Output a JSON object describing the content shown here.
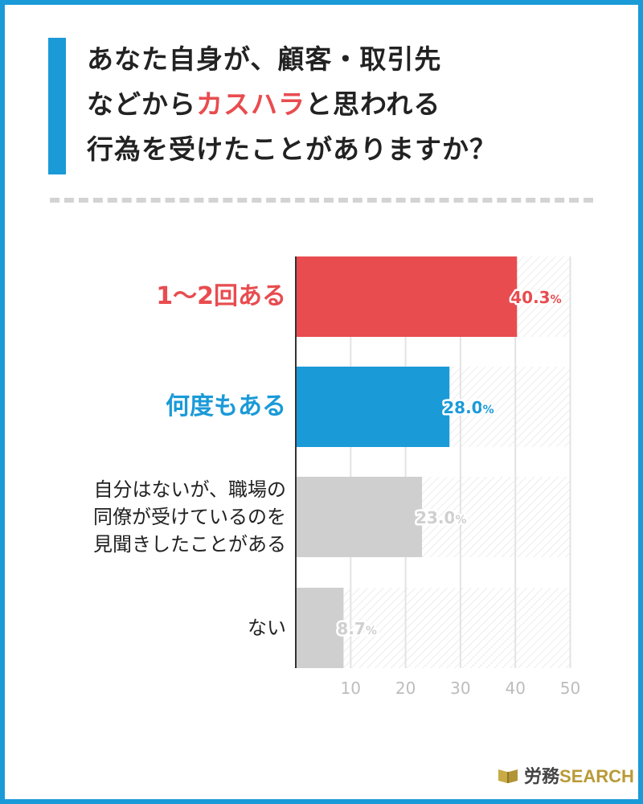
{
  "title": {
    "line1": "あなた自身が、顧客・取引先",
    "line2_pre": "などから",
    "line2_hl": "カスハラ",
    "line2_post": "と思われる",
    "line3": "行為を受けたことがありますか？"
  },
  "colors": {
    "accent": "#1b9ad8",
    "red": "#e84c4f",
    "blue": "#1b9ad8",
    "gray": "#cfcfcf"
  },
  "chart_data": {
    "type": "bar",
    "orientation": "horizontal",
    "categories": [
      "1〜2回ある",
      "何度もある",
      "自分はないが、職場の\n同僚が受けているのを\n見聞きしたことがある",
      "ない"
    ],
    "values": [
      40.3,
      28.0,
      23.0,
      8.7
    ],
    "value_labels": [
      {
        "num": "40.3",
        "unit": "%"
      },
      {
        "num": "28.0",
        "unit": "%"
      },
      {
        "num": "23.0",
        "unit": "%"
      },
      {
        "num": "8.7",
        "unit": "%"
      }
    ],
    "bar_colors": [
      "#e84c4f",
      "#1b9ad8",
      "#cfcfcf",
      "#cfcfcf"
    ],
    "label_colors": [
      "#e84c4f",
      "#1b9ad8",
      "#222222",
      "#222222"
    ],
    "xticks": [
      "10",
      "20",
      "30",
      "40",
      "50"
    ],
    "xlim": [
      0,
      50
    ],
    "grid": true
  },
  "brand": {
    "name_jp": "労務",
    "name_en": "SEARCH"
  }
}
